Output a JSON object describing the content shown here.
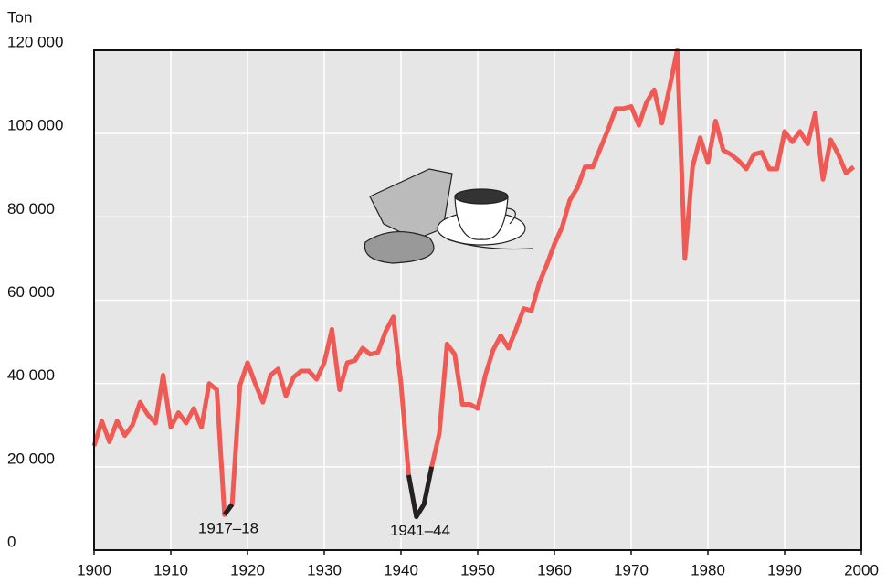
{
  "chart_data": {
    "type": "line",
    "y_label": "Ton",
    "x": [
      1900,
      1901,
      1902,
      1903,
      1904,
      1905,
      1906,
      1907,
      1908,
      1909,
      1910,
      1911,
      1912,
      1913,
      1914,
      1915,
      1916,
      1917,
      1918,
      1919,
      1920,
      1921,
      1922,
      1923,
      1924,
      1925,
      1926,
      1927,
      1928,
      1929,
      1930,
      1931,
      1932,
      1933,
      1934,
      1935,
      1936,
      1937,
      1938,
      1939,
      1940,
      1941,
      1942,
      1943,
      1944,
      1945,
      1946,
      1947,
      1948,
      1949,
      1950,
      1951,
      1952,
      1953,
      1954,
      1955,
      1956,
      1957,
      1958,
      1959,
      1960,
      1961,
      1962,
      1963,
      1964,
      1965,
      1966,
      1967,
      1968,
      1969,
      1970,
      1971,
      1972,
      1973,
      1974,
      1975,
      1976,
      1977,
      1978,
      1979,
      1980,
      1981,
      1982,
      1983,
      1984,
      1985,
      1986,
      1987,
      1988,
      1989,
      1990,
      1991,
      1992,
      1993,
      1994,
      1995,
      1996,
      1997,
      1998,
      1999
    ],
    "series": [
      {
        "color": "#f05a55",
        "values": [
          25000,
          31000,
          26000,
          31000,
          27500,
          30000,
          35500,
          32500,
          30500,
          42000,
          29500,
          33000,
          30500,
          34000,
          29500,
          40000,
          38500,
          8500,
          11000,
          39500,
          45000,
          40000,
          35500,
          42000,
          43500,
          37000,
          41500,
          43000,
          43000,
          41000,
          45000,
          53000,
          38500,
          45000,
          45500,
          48500,
          47000,
          47500,
          52500,
          56000,
          40000,
          18000,
          8000,
          11000,
          20000,
          28000,
          49500,
          47000,
          35000,
          35000,
          34000,
          42000,
          48000,
          51500,
          48500,
          53000,
          58000,
          57500,
          64000,
          68500,
          73500,
          77500,
          84000,
          87000,
          92000,
          92000,
          96500,
          101000,
          106000,
          106000,
          106500,
          102000,
          107500,
          110500,
          102500,
          111000,
          120000,
          70000,
          92000,
          99000,
          93000,
          103000,
          96000,
          95000,
          93500,
          91500,
          95000,
          95500,
          91500,
          91500,
          100500,
          98000,
          100500,
          97500,
          105000,
          89000,
          98500,
          95000,
          90500,
          92000
        ]
      }
    ],
    "highlight_color": "#222222",
    "annotations": [
      {
        "text": "1917–18",
        "x": [
          1917,
          1918
        ]
      },
      {
        "text": "1941–44",
        "x": [
          1941,
          1944
        ]
      }
    ],
    "xlim": [
      1900,
      2000
    ],
    "xticks": [
      1900,
      1910,
      1920,
      1930,
      1940,
      1950,
      1960,
      1970,
      1980,
      1990,
      2000
    ],
    "ylim": [
      0,
      120000
    ],
    "yticks": [
      0,
      {
        "value": 20000,
        "label": "20 000"
      },
      {
        "value": 40000,
        "label": "40 000"
      },
      {
        "value": 60000,
        "label": "60 000"
      },
      {
        "value": 80000,
        "label": "80 000"
      },
      {
        "value": 100000,
        "label": "100 000"
      },
      {
        "value": 120000,
        "label": "120 000"
      }
    ],
    "grid": true
  }
}
